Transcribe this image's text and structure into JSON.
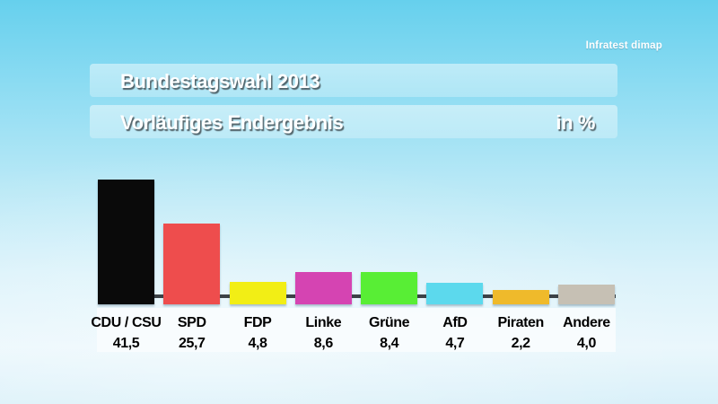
{
  "brand": "Infratest dimap",
  "header": {
    "title": "Bundestagswahl 2013",
    "subtitle": "Vorläufiges Endergebnis",
    "unit": "in %"
  },
  "chart_data": {
    "type": "bar",
    "title": "Bundestagswahl 2013",
    "subtitle": "Vorläufiges Endergebnis",
    "unit": "in %",
    "source": "Infratest dimap",
    "categories": [
      "CDU / CSU",
      "SPD",
      "FDP",
      "Linke",
      "Grüne",
      "AfD",
      "Piraten",
      "Andere"
    ],
    "values": [
      41.5,
      25.7,
      4.8,
      8.6,
      8.4,
      4.7,
      2.2,
      4.0
    ],
    "value_labels": [
      "41,5",
      "25,7",
      "4,8",
      "8,6",
      "8,4",
      "4,7",
      "2,2",
      "4,0"
    ],
    "colors": [
      "#0a0a0a",
      "#ee4d4d",
      "#f2ee15",
      "#d544b2",
      "#58ee35",
      "#5cd9ed",
      "#efba2b",
      "#c6c0b4"
    ],
    "ylim": [
      0,
      45
    ],
    "grid": false,
    "legend": "none"
  }
}
